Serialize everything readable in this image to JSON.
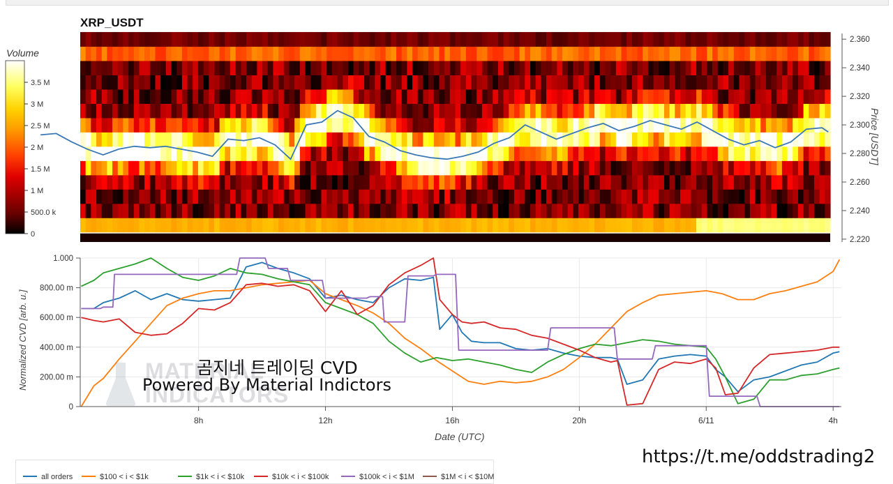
{
  "title": "XRP_USDT",
  "colorbar": {
    "title": "Volume",
    "ticks": [
      {
        "label": "3.5 M",
        "value": 3.5
      },
      {
        "label": "3 M",
        "value": 3.0
      },
      {
        "label": "2.5 M",
        "value": 2.5
      },
      {
        "label": "2 M",
        "value": 2.0
      },
      {
        "label": "1.5 M",
        "value": 1.5
      },
      {
        "label": "1 M",
        "value": 1.0
      },
      {
        "label": "500.0 k",
        "value": 0.5
      },
      {
        "label": "0",
        "value": 0.0
      }
    ],
    "max": 4.0
  },
  "overlay": {
    "line1": "곰지네 트레이딩 CVD",
    "line2": "Powered By Material Indictors",
    "url": "https://t.me/oddstrading2",
    "watermark_line1": "MATERIAL",
    "watermark_line2": "INDICATORS"
  },
  "chart_data": [
    {
      "type": "heatmap",
      "title": "XRP_USDT",
      "ylabel": "Price [USDT]",
      "y_ticks": [
        "2.360",
        "2.340",
        "2.320",
        "2.300",
        "2.280",
        "2.260",
        "2.240",
        "2.220"
      ],
      "ylim": [
        2.218,
        2.364
      ],
      "price_bins": [
        2.23,
        2.24,
        2.25,
        2.26,
        2.27,
        2.28,
        2.29,
        2.3,
        2.31,
        2.32,
        2.33,
        2.34,
        2.35,
        2.36
      ],
      "colorscale": "hot",
      "price_line": {
        "color": "#3a78b5",
        "x": [
          3.0,
          3.5,
          4.0,
          4.5,
          5.0,
          5.5,
          6.0,
          6.5,
          7.0,
          7.5,
          8.0,
          8.5,
          9.0,
          9.5,
          10.0,
          10.5,
          11.0,
          11.5,
          12.0,
          12.5,
          13.0,
          13.5,
          14.0,
          14.5,
          15.0,
          15.5,
          16.0,
          16.5,
          17.0,
          17.5,
          18.0,
          18.5,
          19.0,
          19.5,
          20.0,
          20.5,
          21.0,
          21.5,
          22.0,
          22.5,
          23.0,
          23.5,
          24.0,
          24.5,
          25.0,
          25.5,
          26.0,
          26.5,
          27.0,
          27.5,
          28.0,
          28.2
        ],
        "y": [
          2.293,
          2.294,
          2.288,
          2.283,
          2.279,
          2.283,
          2.285,
          2.284,
          2.285,
          2.283,
          2.281,
          2.278,
          2.29,
          2.289,
          2.291,
          2.286,
          2.276,
          2.3,
          2.302,
          2.31,
          2.305,
          2.292,
          2.288,
          2.282,
          2.279,
          2.277,
          2.276,
          2.278,
          2.281,
          2.287,
          2.291,
          2.3,
          2.295,
          2.29,
          2.294,
          2.298,
          2.301,
          2.296,
          2.299,
          2.303,
          2.3,
          2.297,
          2.302,
          2.296,
          2.29,
          2.286,
          2.289,
          2.284,
          2.288,
          2.297,
          2.298,
          2.295
        ]
      }
    },
    {
      "type": "line",
      "xlabel": "Date (UTC)",
      "ylabel": "Normalized CVD [arb. u.]",
      "xlim": [
        4.27,
        28.26
      ],
      "ylim": [
        0,
        1000
      ],
      "y_ticks": [
        {
          "label": "1.000",
          "value": 1000
        },
        {
          "label": "800.00 m",
          "value": 800
        },
        {
          "label": "600.00 m",
          "value": 600
        },
        {
          "label": "400.00 m",
          "value": 400
        },
        {
          "label": "200.00 m",
          "value": 200
        },
        {
          "label": "0",
          "value": 0
        }
      ],
      "x_ticks": [
        {
          "label": "8h",
          "value": 8
        },
        {
          "label": "12h",
          "value": 12
        },
        {
          "label": "16h",
          "value": 16
        },
        {
          "label": "20h",
          "value": 20
        },
        {
          "label": "6/11",
          "value": 24
        },
        {
          "label": "4h",
          "value": 28
        }
      ],
      "series": [
        {
          "name": "all orders",
          "color": "#1f77b4",
          "x": [
            4.3,
            4.7,
            5.0,
            5.5,
            6.0,
            6.5,
            7.0,
            7.5,
            8.0,
            8.5,
            9.0,
            9.5,
            10.0,
            10.5,
            11.0,
            11.5,
            12.0,
            12.5,
            13.0,
            13.5,
            14.0,
            14.5,
            15.0,
            15.4,
            15.6,
            16.0,
            16.3,
            16.6,
            17.0,
            17.5,
            18.0,
            18.5,
            19.0,
            19.5,
            20.0,
            20.5,
            21.0,
            21.2,
            21.5,
            22.0,
            22.5,
            23.0,
            23.5,
            24.0,
            24.3,
            24.6,
            25.0,
            25.5,
            26.0,
            26.5,
            27.0,
            27.5,
            28.0,
            28.2
          ],
          "y": [
            660,
            660,
            700,
            730,
            780,
            720,
            760,
            720,
            710,
            720,
            730,
            940,
            970,
            930,
            900,
            860,
            730,
            750,
            720,
            700,
            800,
            860,
            850,
            870,
            520,
            620,
            500,
            440,
            430,
            430,
            390,
            380,
            390,
            360,
            340,
            330,
            330,
            320,
            150,
            180,
            320,
            340,
            350,
            340,
            250,
            200,
            100,
            180,
            200,
            240,
            280,
            300,
            360,
            370
          ]
        },
        {
          "name": "$100 < i < $1k",
          "color": "#ff7f0e",
          "x": [
            4.3,
            4.7,
            5.0,
            5.5,
            6.0,
            6.5,
            7.0,
            7.5,
            8.0,
            8.5,
            9.0,
            9.5,
            10.0,
            10.5,
            11.0,
            11.5,
            12.0,
            12.5,
            13.0,
            13.5,
            14.0,
            14.5,
            15.0,
            15.5,
            16.0,
            16.5,
            17.0,
            17.5,
            18.0,
            18.5,
            19.0,
            19.5,
            20.0,
            20.5,
            21.0,
            21.5,
            22.0,
            22.5,
            23.0,
            23.5,
            24.0,
            24.5,
            25.0,
            25.5,
            26.0,
            26.5,
            27.0,
            27.5,
            28.0,
            28.2
          ],
          "y": [
            0,
            140,
            190,
            320,
            440,
            560,
            680,
            730,
            760,
            780,
            780,
            800,
            820,
            830,
            840,
            850,
            760,
            720,
            680,
            630,
            560,
            460,
            390,
            310,
            240,
            170,
            150,
            170,
            160,
            170,
            200,
            250,
            330,
            420,
            530,
            640,
            700,
            750,
            760,
            770,
            780,
            760,
            720,
            720,
            760,
            780,
            810,
            840,
            910,
            990
          ]
        },
        {
          "name": "$1k < i < $10k",
          "color": "#2ca02c",
          "x": [
            4.3,
            4.7,
            5.0,
            5.5,
            6.0,
            6.5,
            7.0,
            7.5,
            8.0,
            8.5,
            9.0,
            9.5,
            10.0,
            10.5,
            11.0,
            11.5,
            12.0,
            12.5,
            13.0,
            13.5,
            14.0,
            14.5,
            15.0,
            15.5,
            16.0,
            16.5,
            17.0,
            17.5,
            18.0,
            18.5,
            19.0,
            19.5,
            20.0,
            20.5,
            21.0,
            21.5,
            22.0,
            22.5,
            23.0,
            23.5,
            24.0,
            24.3,
            24.6,
            25.0,
            25.5,
            26.0,
            26.5,
            27.0,
            27.5,
            28.0,
            28.2
          ],
          "y": [
            810,
            850,
            900,
            930,
            960,
            1000,
            930,
            870,
            850,
            880,
            930,
            900,
            890,
            860,
            840,
            820,
            700,
            660,
            620,
            560,
            440,
            360,
            300,
            330,
            310,
            320,
            300,
            280,
            250,
            230,
            300,
            350,
            390,
            420,
            410,
            430,
            450,
            440,
            420,
            410,
            400,
            320,
            200,
            20,
            50,
            180,
            180,
            210,
            220,
            250,
            260
          ]
        },
        {
          "name": "$10k < i < $100k",
          "color": "#d62728",
          "x": [
            4.3,
            4.7,
            5.0,
            5.5,
            6.0,
            6.5,
            7.0,
            7.5,
            8.0,
            8.5,
            9.0,
            9.5,
            10.0,
            10.5,
            11.0,
            11.5,
            12.0,
            12.5,
            13.0,
            13.5,
            14.0,
            14.5,
            15.0,
            15.4,
            15.6,
            16.0,
            16.3,
            16.6,
            17.0,
            17.5,
            18.0,
            18.5,
            19.0,
            19.5,
            20.0,
            20.5,
            21.0,
            21.2,
            21.5,
            22.0,
            22.5,
            23.0,
            23.5,
            24.0,
            24.3,
            24.6,
            25.0,
            25.5,
            26.0,
            26.5,
            27.0,
            27.5,
            28.0,
            28.2
          ],
          "y": [
            600,
            580,
            570,
            590,
            500,
            480,
            490,
            560,
            660,
            650,
            700,
            820,
            830,
            810,
            820,
            780,
            640,
            780,
            620,
            680,
            820,
            900,
            950,
            1000,
            720,
            620,
            570,
            560,
            570,
            530,
            520,
            480,
            460,
            420,
            380,
            330,
            300,
            310,
            10,
            20,
            250,
            300,
            290,
            320,
            260,
            80,
            90,
            260,
            350,
            360,
            370,
            380,
            400,
            400
          ]
        },
        {
          "name": "$100k < i < $1M",
          "color": "#9467bd",
          "x": [
            4.3,
            4.9,
            5.0,
            5.3,
            5.35,
            9.2,
            9.3,
            10.1,
            10.2,
            10.8,
            10.9,
            11.9,
            12.0,
            13.3,
            13.4,
            13.8,
            13.85,
            14.5,
            14.6,
            15.4,
            15.5,
            16.1,
            16.2,
            19.0,
            19.1,
            21.1,
            21.2,
            22.3,
            22.4,
            24.0,
            24.1,
            25.6,
            25.7,
            28.2
          ],
          "y": [
            660,
            660,
            670,
            670,
            890,
            890,
            1000,
            1000,
            930,
            930,
            850,
            850,
            730,
            730,
            740,
            740,
            570,
            570,
            880,
            880,
            890,
            890,
            380,
            380,
            530,
            530,
            320,
            320,
            410,
            410,
            70,
            70,
            0,
            0
          ]
        },
        {
          "name": "$1M < i < $10M",
          "color": "#8c564b",
          "x": [],
          "y": []
        }
      ]
    }
  ]
}
